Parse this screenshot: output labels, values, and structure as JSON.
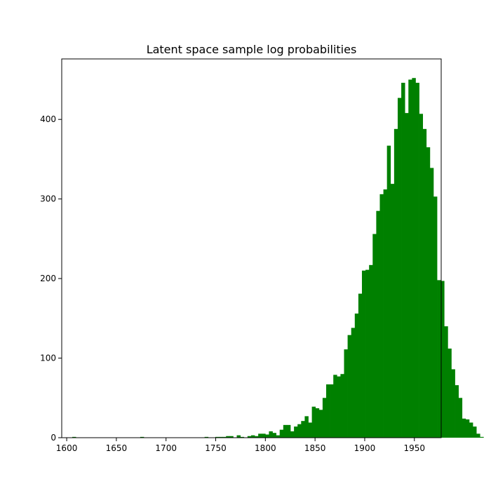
{
  "chart_data": {
    "type": "bar",
    "title": "Latent space sample log probabilities",
    "xlabel": "",
    "ylabel": "",
    "xlim": [
      1595,
      1977
    ],
    "ylim": [
      0,
      476
    ],
    "grid": false,
    "legend": "none",
    "bar_color": "#008000",
    "bin_start": 1602,
    "bin_width": 3.6,
    "counts": [
      0,
      1,
      0,
      0,
      0,
      0,
      0,
      0,
      0,
      0,
      0,
      0,
      0,
      0,
      0,
      0,
      0,
      0,
      0,
      0,
      1,
      0,
      0,
      0,
      0,
      0,
      0,
      0,
      0,
      0,
      0,
      0,
      0,
      0,
      0,
      0,
      0,
      0,
      1,
      0,
      0,
      1,
      1,
      1,
      2,
      2,
      0,
      3,
      1,
      0,
      2,
      3,
      2,
      5,
      5,
      4,
      8,
      6,
      3,
      10,
      16,
      16,
      8,
      14,
      17,
      21,
      27,
      19,
      39,
      37,
      35,
      50,
      67,
      67,
      79,
      77,
      80,
      111,
      129,
      138,
      156,
      181,
      210,
      211,
      217,
      256,
      285,
      306,
      312,
      367,
      319,
      388,
      427,
      446,
      408,
      450,
      452,
      446,
      407,
      388,
      365,
      339,
      303,
      198,
      197,
      140,
      112,
      86,
      66,
      50,
      24,
      23,
      19,
      14,
      5,
      1
    ],
    "x_ticks": [
      1600,
      1650,
      1700,
      1750,
      1800,
      1850,
      1900,
      1950
    ],
    "y_ticks": [
      0,
      100,
      200,
      300,
      400
    ]
  }
}
